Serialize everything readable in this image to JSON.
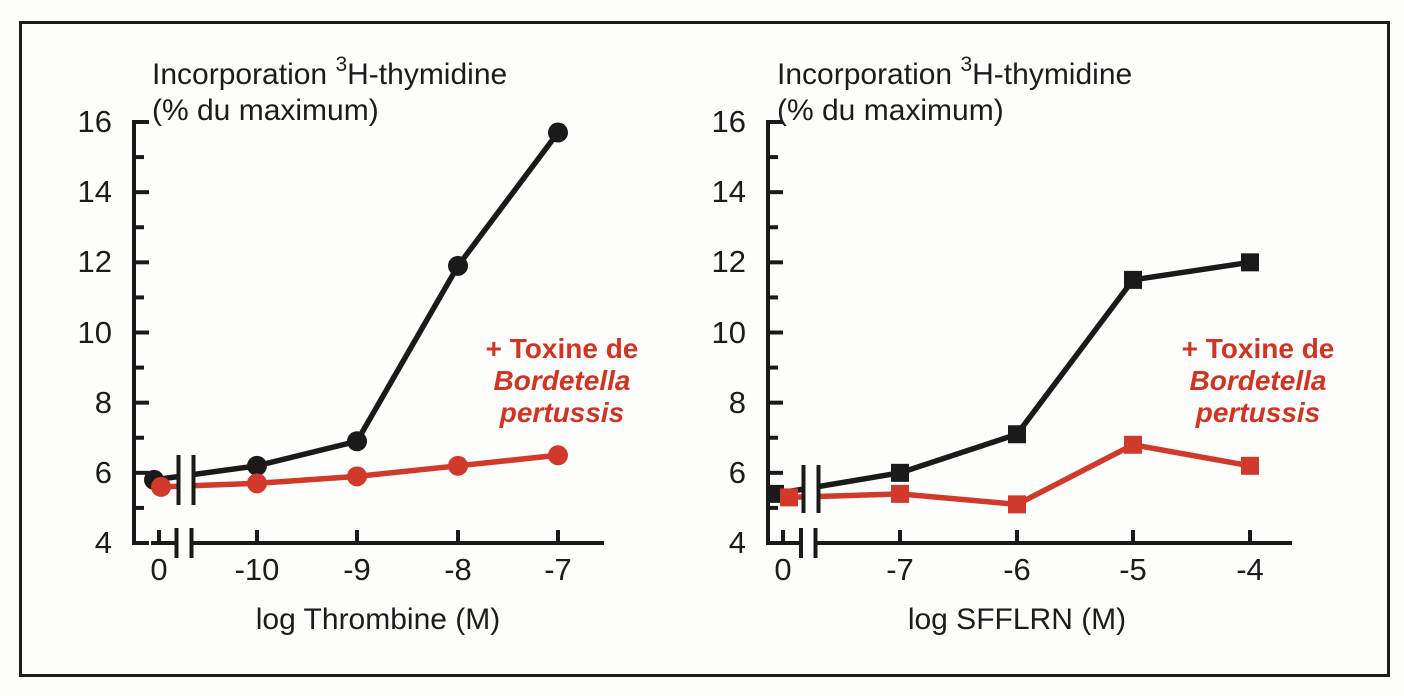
{
  "figure": {
    "background": "#fdfdfb",
    "frame_color": "#1c1c1c",
    "axis_color": "#1a1a1a",
    "accent_red": "#d13a2a"
  },
  "chart_data": [
    {
      "type": "line",
      "panel": "left",
      "title": {
        "pre": "Incorporation ",
        "sup": "3",
        "post": "H-thymidine"
      },
      "subtitle": "(% du maximum)",
      "xlabel": "log Thrombine (M)",
      "x_tick_labels": [
        "0",
        "-10",
        "-9",
        "-8",
        "-7"
      ],
      "y_major_ticks": [
        4,
        6,
        8,
        10,
        12,
        14,
        16
      ],
      "ylim": [
        4,
        16
      ],
      "x_axis_break_between": [
        "0",
        "-10"
      ],
      "grid": false,
      "series": [
        {
          "label": "",
          "marker": "circle",
          "color": "#1a1a1a",
          "values": [
            5.8,
            6.2,
            6.9,
            11.9,
            15.7
          ]
        },
        {
          "label": "+ Toxine de Bordetella pertussis",
          "marker": "circle",
          "color": "#d13a2a",
          "values": [
            5.6,
            5.7,
            5.9,
            6.2,
            6.5
          ]
        }
      ],
      "annotation": {
        "line1": "+ Toxine de",
        "line2": "Bordetella",
        "line3": "pertussis",
        "color": "#d13423"
      }
    },
    {
      "type": "line",
      "panel": "right",
      "title": {
        "pre": "Incorporation ",
        "sup": "3",
        "post": "H-thymidine"
      },
      "subtitle": "(% du maximum)",
      "xlabel": "log SFFLRN (M)",
      "x_tick_labels": [
        "0",
        "-7",
        "-6",
        "-5",
        "-4"
      ],
      "y_major_ticks": [
        4,
        6,
        8,
        10,
        12,
        14,
        16
      ],
      "ylim": [
        4,
        16
      ],
      "x_axis_break_between": [
        "0",
        "-7"
      ],
      "grid": false,
      "series": [
        {
          "label": "",
          "marker": "square",
          "color": "#1a1a1a",
          "values": [
            5.4,
            6.0,
            7.1,
            11.5,
            12.0
          ]
        },
        {
          "label": "+ Toxine de Bordetella pertussis",
          "marker": "square",
          "color": "#d13a2a",
          "values": [
            5.3,
            5.4,
            5.1,
            6.8,
            6.2
          ]
        }
      ],
      "annotation": {
        "line1": "+ Toxine de",
        "line2": "Bordetella",
        "line3": "pertussis",
        "color": "#d13423"
      }
    }
  ]
}
